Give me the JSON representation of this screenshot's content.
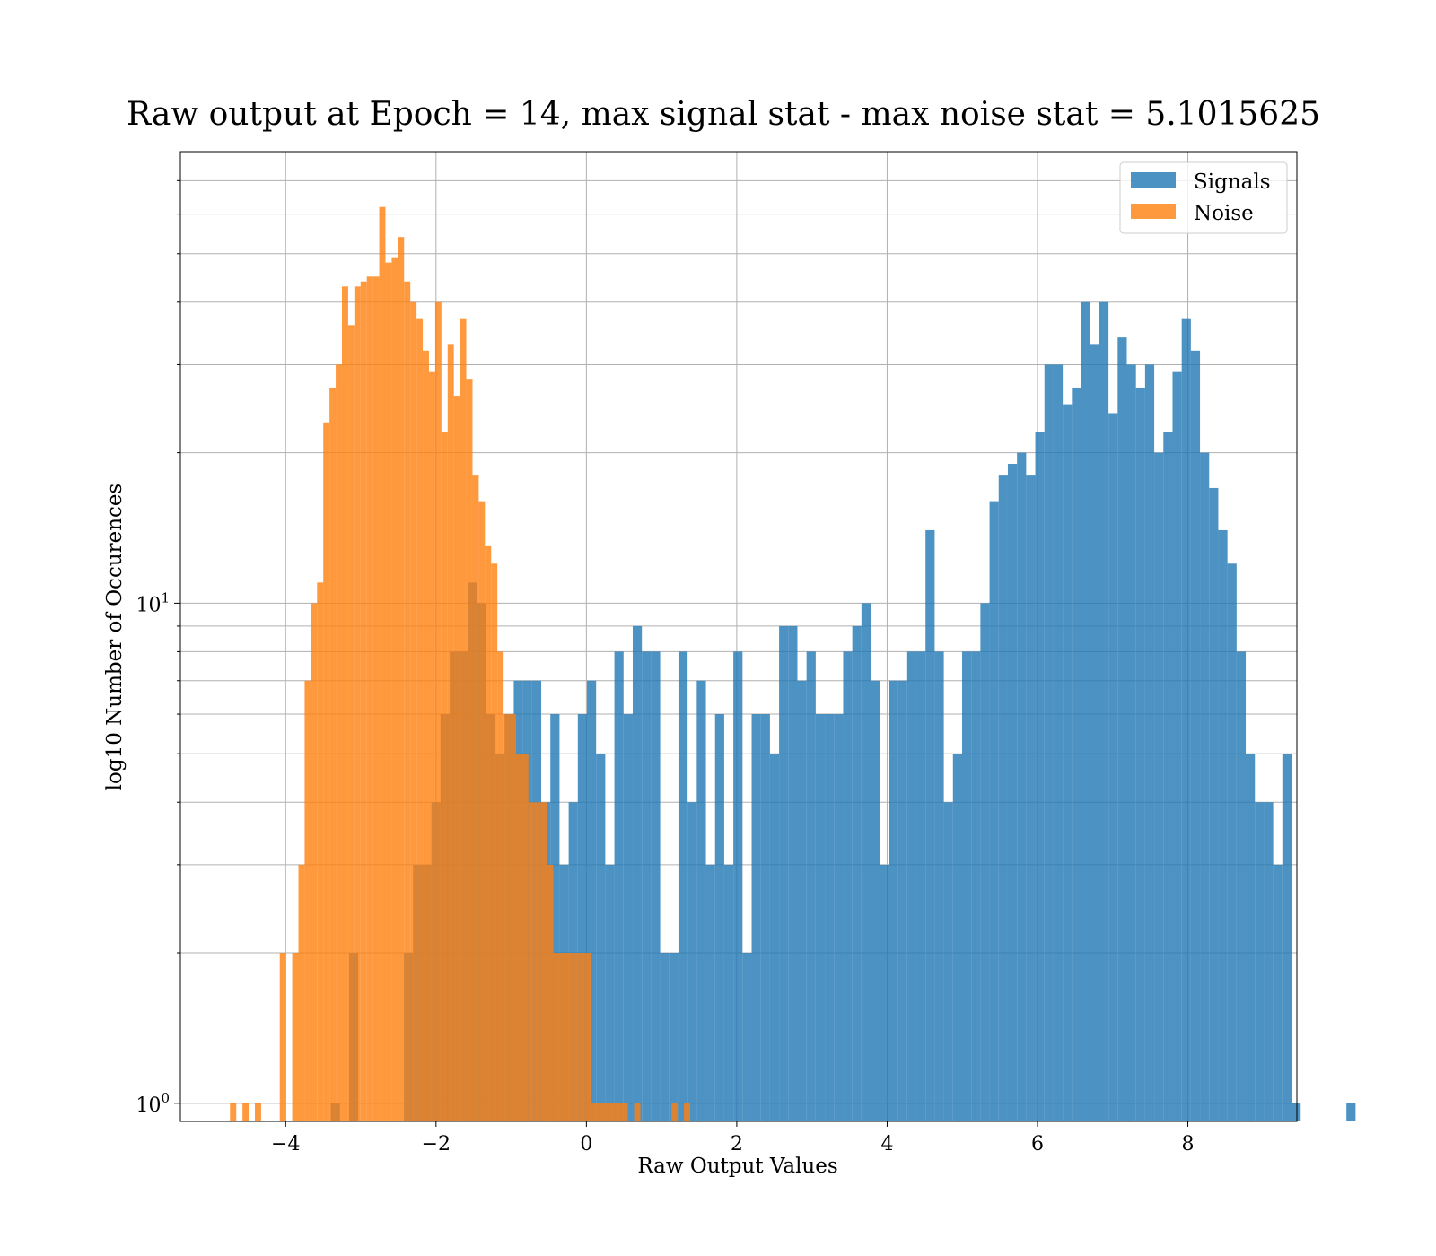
{
  "chart_data": {
    "type": "bar",
    "title": "Raw output at Epoch = 14, max signal stat - max noise stat = 5.1015625",
    "xlabel": "Raw Output Values",
    "ylabel": "log10 Number of Occurences",
    "xlim": [
      -5.4,
      9.45
    ],
    "ylim": [
      0.92,
      80
    ],
    "yscale": "log",
    "grid": true,
    "legend_position": "top-right",
    "x_ticks": [
      -4,
      -2,
      0,
      2,
      4,
      6,
      8
    ],
    "x_tick_labels": [
      "−4",
      "−2",
      "0",
      "2",
      "4",
      "6",
      "8"
    ],
    "y_ticks": [
      1,
      10
    ],
    "y_tick_labels": [
      {
        "base": "10",
        "exp": "0"
      },
      {
        "base": "10",
        "exp": "1"
      }
    ],
    "series": [
      {
        "name": "Signals",
        "color": "#1f77b4",
        "opacity": 0.8,
        "bin_start": -3.4,
        "bin_width": 0.1217,
        "counts": [
          1,
          0,
          2,
          0,
          0,
          0,
          0,
          0,
          2,
          3,
          3,
          4,
          6,
          8,
          8,
          11,
          10,
          6,
          5,
          6,
          7,
          7,
          7,
          4,
          6,
          3,
          4,
          6,
          7,
          5,
          3,
          8,
          6,
          9,
          8,
          8,
          2,
          2,
          8,
          4,
          7,
          3,
          6,
          3,
          8,
          2,
          6,
          6,
          5,
          9,
          9,
          7,
          8,
          6,
          6,
          6,
          8,
          9,
          10,
          7,
          3,
          7,
          7,
          8,
          8,
          14,
          8,
          4,
          5,
          8,
          8,
          10,
          16,
          18,
          19,
          20,
          18,
          22,
          30,
          30,
          25,
          27,
          40,
          33,
          40,
          24,
          34,
          30,
          27,
          30,
          20,
          22,
          29,
          37,
          32,
          20,
          17,
          14,
          12,
          8,
          5,
          4,
          4,
          3,
          5,
          1,
          0,
          0,
          0,
          0,
          0,
          1
        ]
      },
      {
        "name": "Noise",
        "color": "#ff7f0e",
        "opacity": 0.8,
        "bin_start": -4.74,
        "bin_width": 0.0827,
        "counts": [
          1,
          0,
          1,
          0,
          1,
          0,
          0,
          0,
          2,
          0,
          2,
          3,
          7,
          10,
          11,
          23,
          27,
          30,
          43,
          36,
          43,
          44,
          45,
          45,
          62,
          48,
          49,
          54,
          44,
          40,
          37,
          32,
          29,
          40,
          22,
          33,
          26,
          37,
          28,
          18,
          16,
          13,
          12,
          8,
          6,
          6,
          5,
          5,
          4,
          4,
          4,
          3,
          2,
          2,
          2,
          2,
          2,
          2,
          1,
          1,
          1,
          1,
          1,
          1,
          0,
          1,
          0,
          0,
          0,
          0,
          0,
          1,
          0,
          1,
          0,
          0
        ]
      }
    ]
  }
}
